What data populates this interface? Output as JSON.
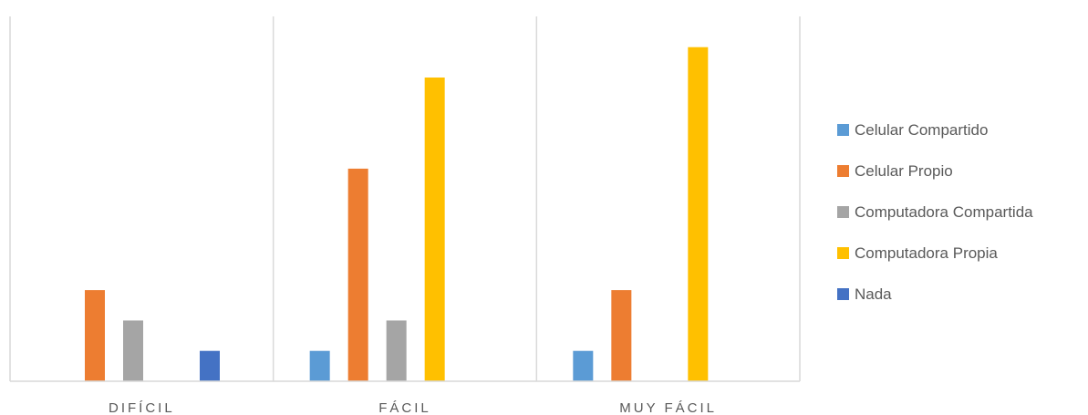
{
  "chart_data": {
    "type": "bar",
    "title": "",
    "xlabel": "",
    "ylabel": "",
    "categories": [
      "DIFÍCIL",
      "FÁCIL",
      "MUY FÁCIL"
    ],
    "ylim": [
      0,
      12
    ],
    "grid": false,
    "legend_position": "right",
    "series": [
      {
        "name": "Celular Compartido",
        "color": "#5B9BD5",
        "values": [
          0,
          1,
          1
        ]
      },
      {
        "name": "Celular Propio",
        "color": "#ED7D31",
        "values": [
          3,
          7,
          3
        ]
      },
      {
        "name": "Computadora Compartida",
        "color": "#A5A5A5",
        "values": [
          2,
          2,
          0
        ]
      },
      {
        "name": "Computadora Propia",
        "color": "#FFC000",
        "values": [
          0,
          10,
          11
        ]
      },
      {
        "name": "Nada",
        "color": "#4472C4",
        "values": [
          1,
          0,
          0
        ]
      }
    ]
  }
}
